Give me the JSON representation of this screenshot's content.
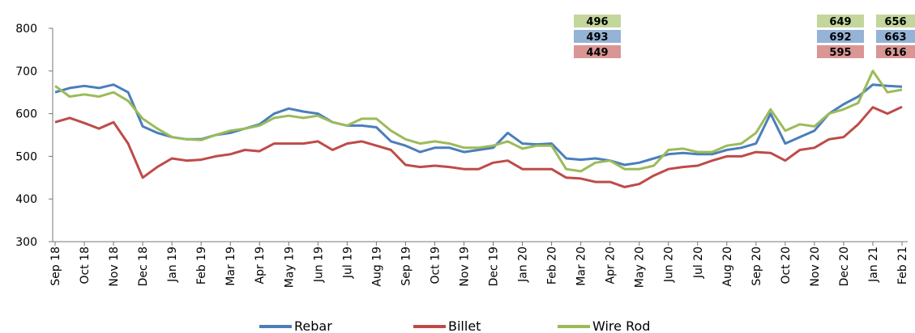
{
  "chart_data": {
    "type": "line",
    "categories": [
      "Sep 18",
      null,
      "Oct 18",
      null,
      "Nov 18",
      null,
      "Dec 18",
      null,
      "Jan 19",
      null,
      "Feb 19",
      null,
      "Mar 19",
      null,
      "Apr 19",
      null,
      "May 19",
      null,
      "Jun 19",
      null,
      "Jul 19",
      null,
      "Aug 19",
      null,
      "Sep 19",
      null,
      "Oct 19",
      null,
      "Nov 19",
      null,
      "Dec 19",
      null,
      "Jan 20",
      null,
      "Feb 20",
      null,
      "Mar 20",
      null,
      "Apr 20",
      null,
      "May 20",
      null,
      "Jun 20",
      null,
      "Jul 20",
      null,
      "Aug 20",
      null,
      "Sep 20",
      null,
      "Oct 20",
      null,
      "Nov 20",
      null,
      "Dec 20",
      null,
      "Jan 21",
      null,
      "Feb 21"
    ],
    "series": [
      {
        "name": "Rebar",
        "color": "#4a7ebb",
        "values": [
          650,
          660,
          665,
          660,
          668,
          650,
          570,
          555,
          545,
          540,
          540,
          550,
          555,
          565,
          575,
          600,
          612,
          605,
          600,
          580,
          572,
          572,
          568,
          535,
          525,
          510,
          520,
          520,
          510,
          515,
          520,
          555,
          530,
          528,
          530,
          495,
          492,
          495,
          490,
          480,
          485,
          495,
          505,
          508,
          505,
          505,
          515,
          520,
          530,
          600,
          530,
          545,
          560,
          600,
          622,
          640,
          668,
          665,
          663
        ]
      },
      {
        "name": "Billet",
        "color": "#be4b48",
        "values": [
          580,
          590,
          578,
          565,
          580,
          530,
          450,
          475,
          495,
          490,
          492,
          500,
          505,
          515,
          512,
          530,
          530,
          530,
          535,
          515,
          530,
          535,
          525,
          515,
          480,
          475,
          478,
          475,
          470,
          470,
          485,
          490,
          470,
          470,
          470,
          450,
          448,
          440,
          440,
          428,
          435,
          455,
          470,
          475,
          478,
          490,
          500,
          500,
          510,
          508,
          490,
          515,
          520,
          540,
          545,
          575,
          615,
          600,
          616
        ]
      },
      {
        "name": "Wire Rod",
        "color": "#9bbb59",
        "values": [
          665,
          640,
          645,
          640,
          650,
          630,
          588,
          565,
          545,
          540,
          538,
          550,
          560,
          565,
          572,
          590,
          595,
          590,
          595,
          580,
          572,
          588,
          588,
          560,
          540,
          530,
          535,
          530,
          520,
          520,
          525,
          535,
          518,
          525,
          525,
          470,
          465,
          485,
          490,
          470,
          470,
          478,
          515,
          518,
          510,
          510,
          525,
          530,
          555,
          610,
          560,
          575,
          570,
          600,
          610,
          625,
          700,
          650,
          656
        ]
      }
    ],
    "annotations": [
      [
        496,
        493,
        449
      ],
      [
        649,
        692,
        595
      ],
      [
        656,
        663,
        616
      ]
    ],
    "ylim": [
      300,
      800
    ],
    "yticks": [
      300,
      400,
      500,
      600,
      700,
      800
    ],
    "grid": false
  }
}
